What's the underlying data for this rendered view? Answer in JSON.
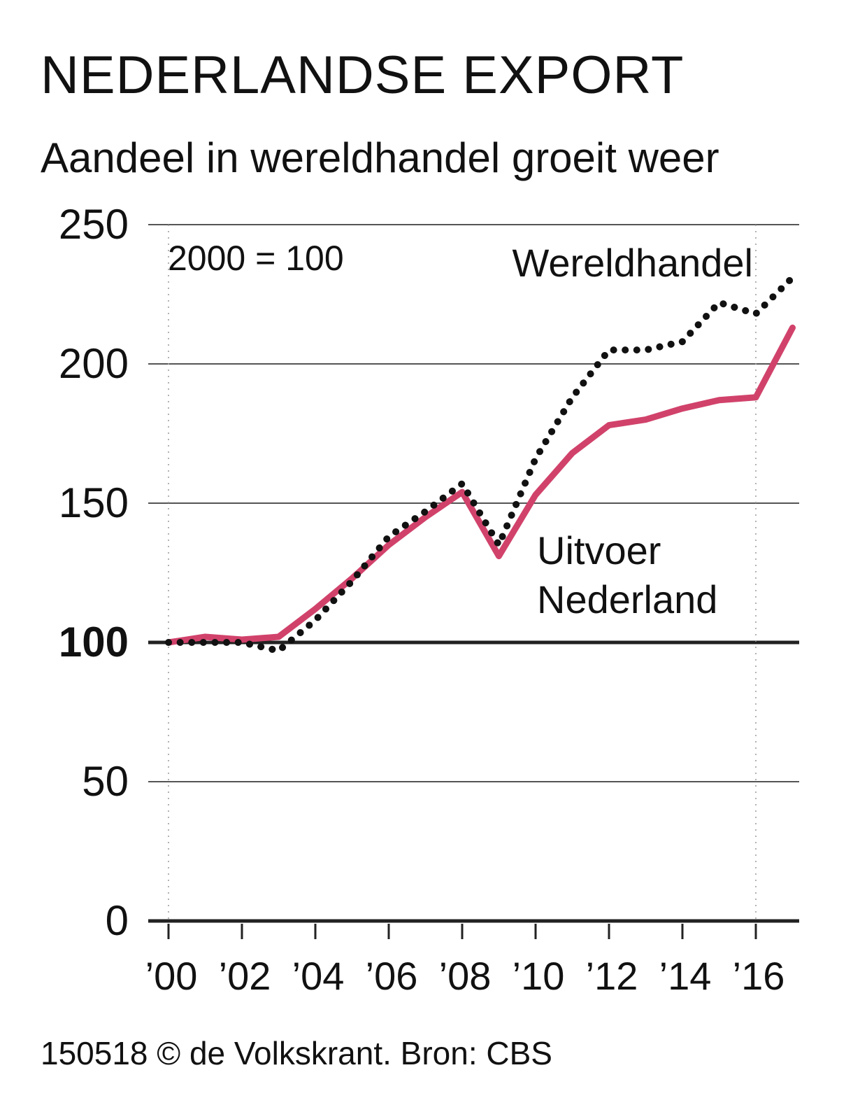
{
  "chart_data": {
    "type": "line",
    "title": "NEDERLANDSE EXPORT",
    "subtitle": "Aandeel in wereldhandel groeit weer",
    "index_note": "2000 = 100",
    "source": "150518 © de Volkskrant. Bron: CBS",
    "xlabel": "",
    "ylabel": "",
    "x": [
      2000,
      2001,
      2002,
      2003,
      2004,
      2005,
      2006,
      2007,
      2008,
      2009,
      2010,
      2011,
      2012,
      2013,
      2014,
      2015,
      2016,
      2017
    ],
    "x_ticks": [
      2000,
      2002,
      2004,
      2006,
      2008,
      2010,
      2012,
      2014,
      2016
    ],
    "x_tick_labels": [
      "’00",
      "’02",
      "’04",
      "’06",
      "’08",
      "’10",
      "’12",
      "’14",
      "’16"
    ],
    "y_ticks": [
      0,
      50,
      100,
      150,
      200,
      250
    ],
    "y_tick_labels": [
      "0",
      "50",
      "100",
      "150",
      "200",
      "250"
    ],
    "ylim": [
      0,
      250
    ],
    "xlim": [
      2000,
      2017.8
    ],
    "grid": true,
    "series": [
      {
        "name": "Wereldhandel",
        "style": "dotted",
        "color": "#111111",
        "values": [
          100,
          100,
          100,
          97,
          108,
          122,
          138,
          147,
          157,
          135,
          166,
          188,
          205,
          205,
          208,
          222,
          218,
          231
        ]
      },
      {
        "name": "Uitvoer Nederland",
        "label_lines": [
          "Uitvoer",
          "Nederland"
        ],
        "style": "solid",
        "color": "#d1426b",
        "values": [
          100,
          102,
          101,
          102,
          112,
          123,
          135,
          145,
          154,
          131,
          153,
          168,
          178,
          180,
          184,
          187,
          188,
          213
        ]
      }
    ]
  }
}
